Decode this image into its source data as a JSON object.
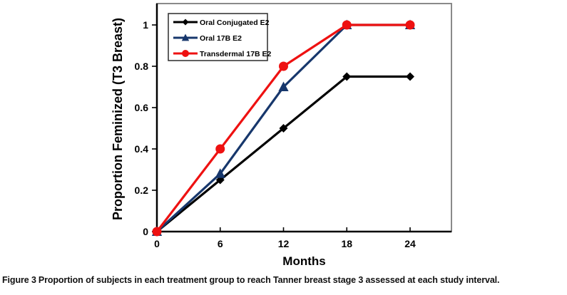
{
  "chart_data": {
    "type": "line",
    "title": "",
    "xlabel": "Months",
    "ylabel": "Proportion Feminized (T3 Breast)",
    "x": [
      0,
      6,
      12,
      18,
      24
    ],
    "x_tick_labels": [
      "0",
      "6",
      "12",
      "18",
      "24"
    ],
    "y_tick_values": [
      0,
      0.2,
      0.4,
      0.6,
      0.8,
      1
    ],
    "y_tick_labels": [
      "0",
      "0.2",
      "0.4",
      "0.6",
      "0.8",
      "1"
    ],
    "xlim": [
      0,
      28
    ],
    "ylim": [
      0,
      1.1
    ],
    "grid": false,
    "legend_position": "top-left-inside",
    "series": [
      {
        "name": "Oral Conjugated E2",
        "marker": "diamond",
        "color": "#000000",
        "values": [
          0,
          0.25,
          0.5,
          0.75,
          0.75
        ]
      },
      {
        "name": "Oral 17B E2",
        "marker": "triangle",
        "color": "#17376c",
        "values": [
          0,
          0.28,
          0.7,
          1.0,
          1.0
        ]
      },
      {
        "name": "Transdermal 17B E2",
        "marker": "circle",
        "color": "#ee1111",
        "values": [
          0,
          0.4,
          0.8,
          1.0,
          1.0
        ]
      }
    ],
    "colors": {
      "axis": "#000000",
      "plot_border": "#8a8a8a",
      "legend_border": "#2b2b2b",
      "background": "#ffffff"
    }
  },
  "caption": {
    "prefix": "Figure 3",
    "text": "Proportion of subjects in each treatment group to reach Tanner breast stage 3 assessed at each study interval."
  }
}
